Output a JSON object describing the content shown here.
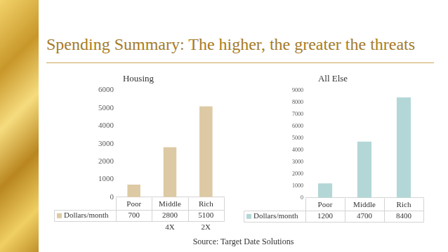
{
  "title": "Spending Summary: The higher, the greater the threats",
  "source": "Source: Target Date Solutions",
  "chart_data": [
    {
      "type": "bar",
      "title": "Housing",
      "categories": [
        "Poor",
        "Middle",
        "Rich"
      ],
      "series": [
        {
          "name": "Dollars/month",
          "color": "#ddc9a3",
          "values": [
            700,
            2800,
            5100
          ]
        }
      ],
      "ylim": [
        0,
        6000
      ],
      "yticks": [
        0,
        1000,
        2000,
        3000,
        4000,
        5000,
        6000
      ],
      "grid": false,
      "legend": "bottom",
      "data_labels": true,
      "annotations": [
        {
          "category": "Middle",
          "text": "4X"
        },
        {
          "category": "Rich",
          "text": "2X"
        }
      ]
    },
    {
      "type": "bar",
      "title": "All Else",
      "categories": [
        "Poor",
        "Middle",
        "Rich"
      ],
      "series": [
        {
          "name": "Dollars/month",
          "color": "#b3d7d6",
          "values": [
            1200,
            4700,
            8400
          ]
        }
      ],
      "ylim": [
        0,
        9000
      ],
      "yticks": [
        0,
        1000,
        2000,
        3000,
        4000,
        5000,
        6000,
        7000,
        8000,
        9000
      ],
      "grid": false,
      "legend": "bottom",
      "data_labels": true
    }
  ]
}
